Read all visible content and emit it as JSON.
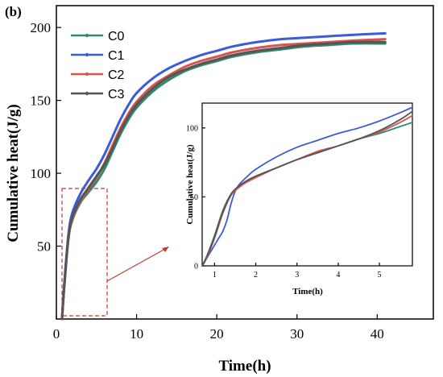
{
  "panel_label": "(b)",
  "colors": {
    "C0": "#2e8b6e",
    "C1": "#3b5bd9",
    "C2": "#d9534f",
    "C3": "#555555",
    "zoom_box": "#b5432f"
  },
  "chart_data": [
    {
      "type": "line",
      "role": "main",
      "xlabel": "Time(h)",
      "ylabel": "Cumulative heat(J/g)",
      "xlim": [
        0,
        47
      ],
      "ylim": [
        0,
        215
      ],
      "xticks": [
        0,
        10,
        20,
        30,
        40
      ],
      "yticks": [
        50,
        100,
        150,
        200
      ],
      "legend": {
        "placement": "top-left",
        "entries": [
          "C0",
          "C1",
          "C2",
          "C3"
        ]
      },
      "series": [
        {
          "name": "C0",
          "x": [
            0.7,
            1,
            1.5,
            2,
            3,
            4,
            5,
            6,
            7,
            8,
            9,
            10,
            12,
            14,
            16,
            18,
            20,
            22,
            25,
            28,
            31,
            34,
            37,
            41
          ],
          "y": [
            0,
            25,
            55,
            68,
            80,
            87,
            94,
            103,
            115,
            127,
            137,
            145,
            156,
            164,
            170,
            174,
            177,
            180,
            183,
            185,
            187,
            188,
            189,
            189
          ]
        },
        {
          "name": "C1",
          "x": [
            0.7,
            1,
            1.5,
            2,
            3,
            4,
            5,
            6,
            7,
            8,
            9,
            10,
            12,
            14,
            16,
            18,
            20,
            22,
            25,
            28,
            31,
            34,
            37,
            41
          ],
          "y": [
            0,
            25,
            58,
            73,
            86,
            95,
            103,
            113,
            125,
            137,
            147,
            155,
            165,
            172,
            177,
            181,
            184,
            187,
            190,
            192,
            193,
            194,
            195,
            196
          ]
        },
        {
          "name": "C2",
          "x": [
            0.7,
            1,
            1.5,
            2,
            3,
            4,
            5,
            6,
            7,
            8,
            9,
            10,
            12,
            14,
            16,
            18,
            20,
            22,
            25,
            28,
            31,
            34,
            37,
            41
          ],
          "y": [
            0,
            23,
            55,
            69,
            81,
            89,
            97,
            107,
            119,
            131,
            141,
            149,
            160,
            167,
            173,
            177,
            180,
            183,
            186,
            188,
            189,
            190,
            191,
            192
          ]
        },
        {
          "name": "C3",
          "x": [
            0.7,
            1,
            1.5,
            2,
            3,
            4,
            5,
            6,
            7,
            8,
            9,
            10,
            12,
            14,
            16,
            18,
            20,
            22,
            25,
            28,
            31,
            34,
            37,
            41
          ],
          "y": [
            0,
            24,
            56,
            70,
            82,
            90,
            98,
            106,
            117,
            129,
            139,
            147,
            158,
            166,
            171,
            175,
            178,
            181,
            184,
            186,
            188,
            189,
            190,
            190
          ]
        }
      ]
    },
    {
      "type": "line",
      "role": "inset",
      "xlabel": "Time(h)",
      "ylabel": "Cumulative heat(J/g)",
      "xlim": [
        0.7,
        5.8
      ],
      "ylim": [
        0,
        118
      ],
      "xticks": [
        1,
        2,
        3,
        4,
        5
      ],
      "yticks": [
        0,
        50,
        100
      ],
      "series": [
        {
          "name": "C0",
          "x": [
            0.7,
            0.8,
            1,
            1.2,
            1.4,
            1.6,
            1.8,
            2,
            2.5,
            3,
            3.5,
            4,
            4.5,
            5,
            5.5,
            5.8
          ],
          "y": [
            0,
            6,
            22,
            40,
            52,
            58,
            62,
            65,
            71,
            77,
            82,
            87,
            92,
            96,
            101,
            104
          ]
        },
        {
          "name": "C1",
          "x": [
            0.7,
            0.8,
            1,
            1.1,
            1.2,
            1.3,
            1.4,
            1.5,
            1.6,
            1.8,
            2,
            2.5,
            3,
            3.5,
            4,
            4.5,
            5,
            5.5,
            5.8
          ],
          "y": [
            0,
            5,
            15,
            20,
            25,
            33,
            45,
            54,
            59,
            65,
            70,
            79,
            86,
            91,
            96,
            100,
            105,
            111,
            115
          ]
        },
        {
          "name": "C2",
          "x": [
            0.7,
            0.8,
            1,
            1.2,
            1.4,
            1.6,
            1.8,
            2,
            2.5,
            3,
            3.5,
            4,
            4.5,
            5,
            5.5,
            5.8
          ],
          "y": [
            0,
            5,
            20,
            38,
            51,
            57,
            61,
            64,
            71,
            77,
            83,
            87,
            92,
            97,
            104,
            109
          ]
        },
        {
          "name": "C3",
          "x": [
            0.7,
            0.8,
            1,
            1.2,
            1.4,
            1.6,
            1.8,
            2,
            2.5,
            3,
            3.5,
            4,
            4.5,
            5,
            5.5,
            5.8
          ],
          "y": [
            0,
            6,
            21,
            39,
            52,
            58,
            62,
            65,
            71,
            77,
            82,
            87,
            92,
            98,
            106,
            112
          ]
        }
      ]
    }
  ]
}
